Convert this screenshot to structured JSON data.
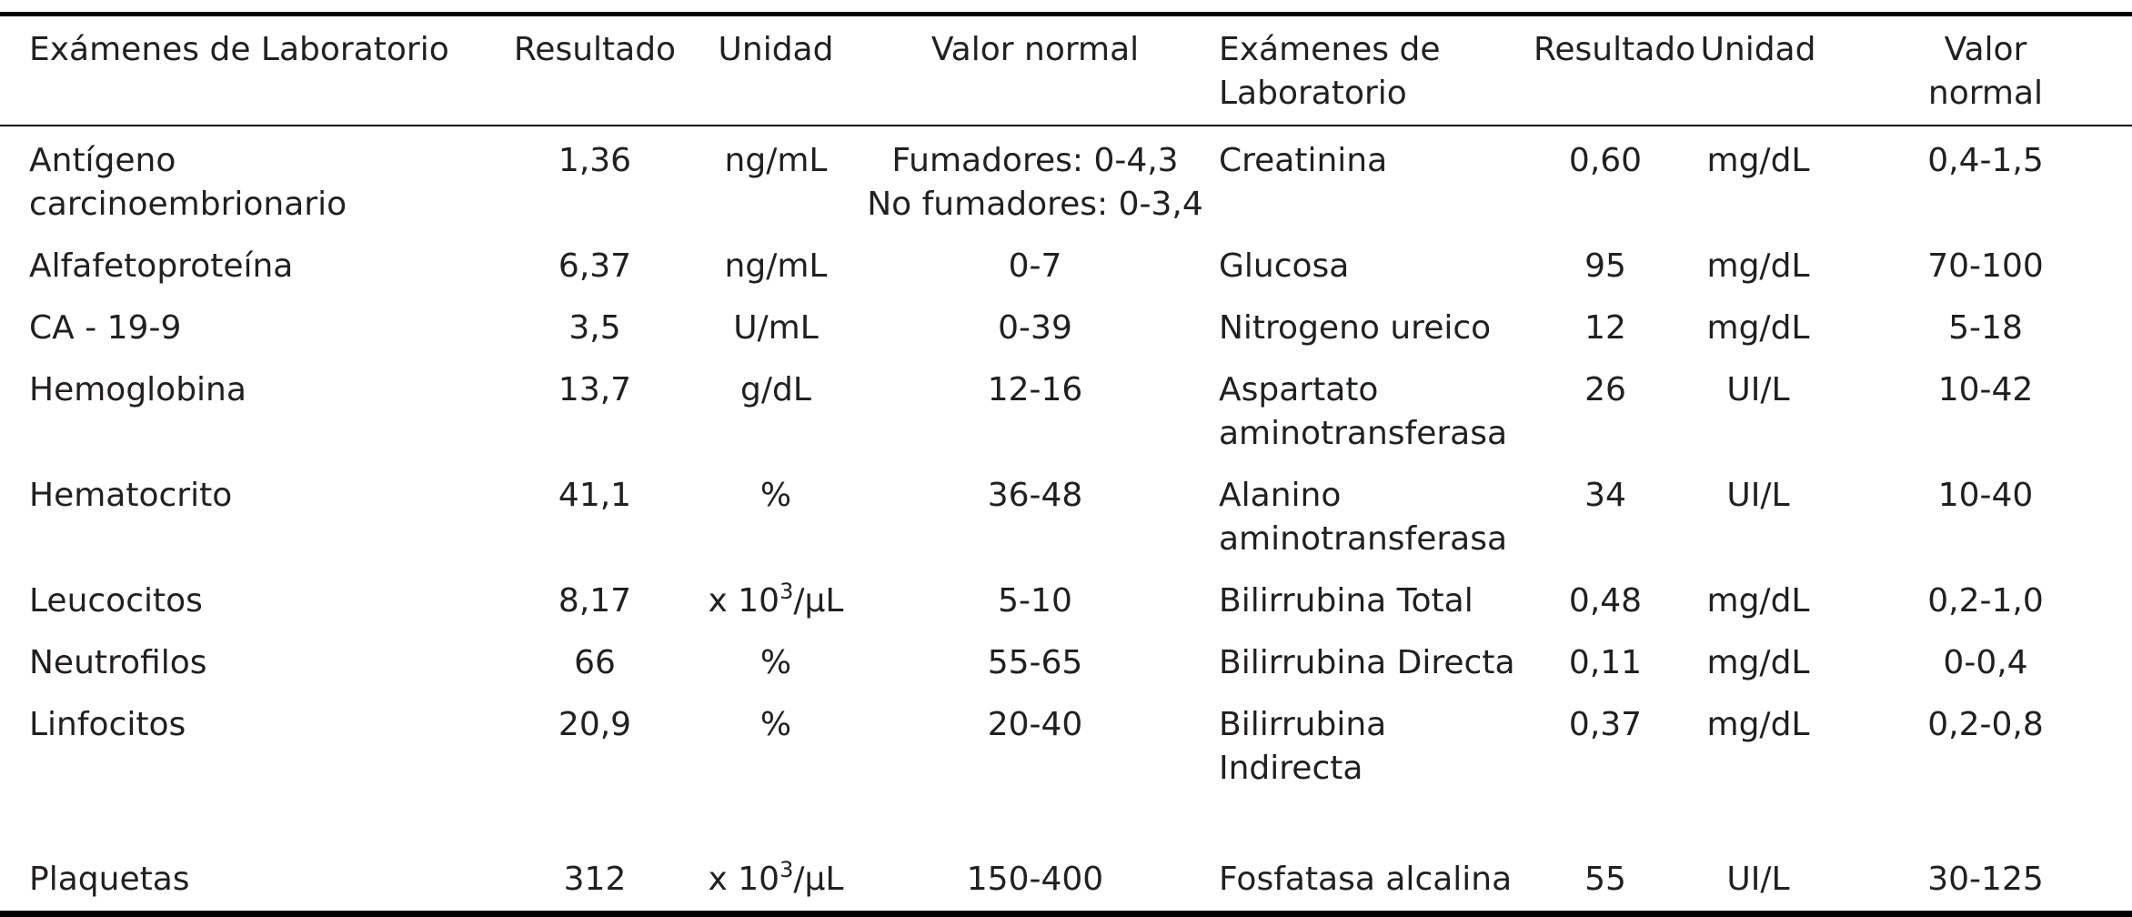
{
  "header": {
    "left": {
      "exam": "Exámenes de Laboratorio",
      "result": "Resultado",
      "unit": "Unidad",
      "normal": "Valor normal"
    },
    "right": {
      "exam_line1": "Exámenes de",
      "exam_line2": "Laboratorio",
      "result": "Resultado",
      "unit": "Unidad",
      "normal_line1": "Valor",
      "normal_line2": "normal"
    }
  },
  "rows": [
    {
      "left": {
        "exam": "Antígeno carcinoembrionario",
        "result": "1,36",
        "unit": "ng/mL",
        "normal_line1": "Fumadores: 0-4,3",
        "normal_line2": "No fumadores: 0-3,4"
      },
      "right": {
        "exam_line1": "Creatinina",
        "exam_line2": "",
        "result": "0,60",
        "unit": "mg/dL",
        "normal": "0,4-1,5"
      }
    },
    {
      "left": {
        "exam": "Alfafetoproteína",
        "result": "6,37",
        "unit": "ng/mL",
        "normal_line1": "0-7",
        "normal_line2": ""
      },
      "right": {
        "exam_line1": "Glucosa",
        "exam_line2": "",
        "result": "95",
        "unit": "mg/dL",
        "normal": "70-100"
      }
    },
    {
      "left": {
        "exam": "CA - 19-9",
        "result": "3,5",
        "unit": "U/mL",
        "normal_line1": "0-39",
        "normal_line2": ""
      },
      "right": {
        "exam_line1": "Nitrogeno ureico",
        "exam_line2": "",
        "result": "12",
        "unit": "mg/dL",
        "normal": "5-18"
      }
    },
    {
      "left": {
        "exam": "Hemoglobina",
        "result": "13,7",
        "unit": "g/dL",
        "normal_line1": "12-16",
        "normal_line2": ""
      },
      "right": {
        "exam_line1": "Aspartato",
        "exam_line2": "aminotransferasa",
        "result": "26",
        "unit": "UI/L",
        "normal": "10-42"
      }
    },
    {
      "left": {
        "exam": "Hematocrito",
        "result": "41,1",
        "unit": "%",
        "normal_line1": "36-48",
        "normal_line2": ""
      },
      "right": {
        "exam_line1": "Alanino",
        "exam_line2": "aminotransferasa",
        "result": "34",
        "unit": "UI/L",
        "normal": "10-40"
      }
    },
    {
      "left": {
        "exam": "Leucocitos",
        "result": "8,17",
        "unit_base": "x 10",
        "unit_sup": "3",
        "unit_tail": "/µL",
        "normal_line1": "5-10",
        "normal_line2": ""
      },
      "right": {
        "exam_line1": "Bilirrubina Total",
        "exam_line2": "",
        "result": "0,48",
        "unit": "mg/dL",
        "normal": "0,2-1,0"
      }
    },
    {
      "left": {
        "exam": "Neutrofilos",
        "result": "66",
        "unit": "%",
        "normal_line1": "55-65",
        "normal_line2": ""
      },
      "right": {
        "exam_line1": "Bilirrubina Directa",
        "exam_line2": "",
        "result": "0,11",
        "unit": "mg/dL",
        "normal": "0-0,4"
      }
    },
    {
      "left": {
        "exam": "Linfocitos",
        "result": "20,9",
        "unit": "%",
        "normal_line1": "20-40",
        "normal_line2": ""
      },
      "right": {
        "exam_line1": "Bilirrubina Indirecta",
        "exam_line2": "",
        "result": "0,37",
        "unit": "mg/dL",
        "normal": "0,2-0,8"
      }
    },
    {
      "left": {
        "exam": "Plaquetas",
        "result": "312",
        "unit_base": "x 10",
        "unit_sup": "3",
        "unit_tail": "/µL",
        "normal_line1": "150-400",
        "normal_line2": ""
      },
      "right": {
        "exam_line1": "Fosfatasa alcalina",
        "exam_line2": "",
        "result": "55",
        "unit": "UI/L",
        "normal": "30-125"
      }
    }
  ]
}
